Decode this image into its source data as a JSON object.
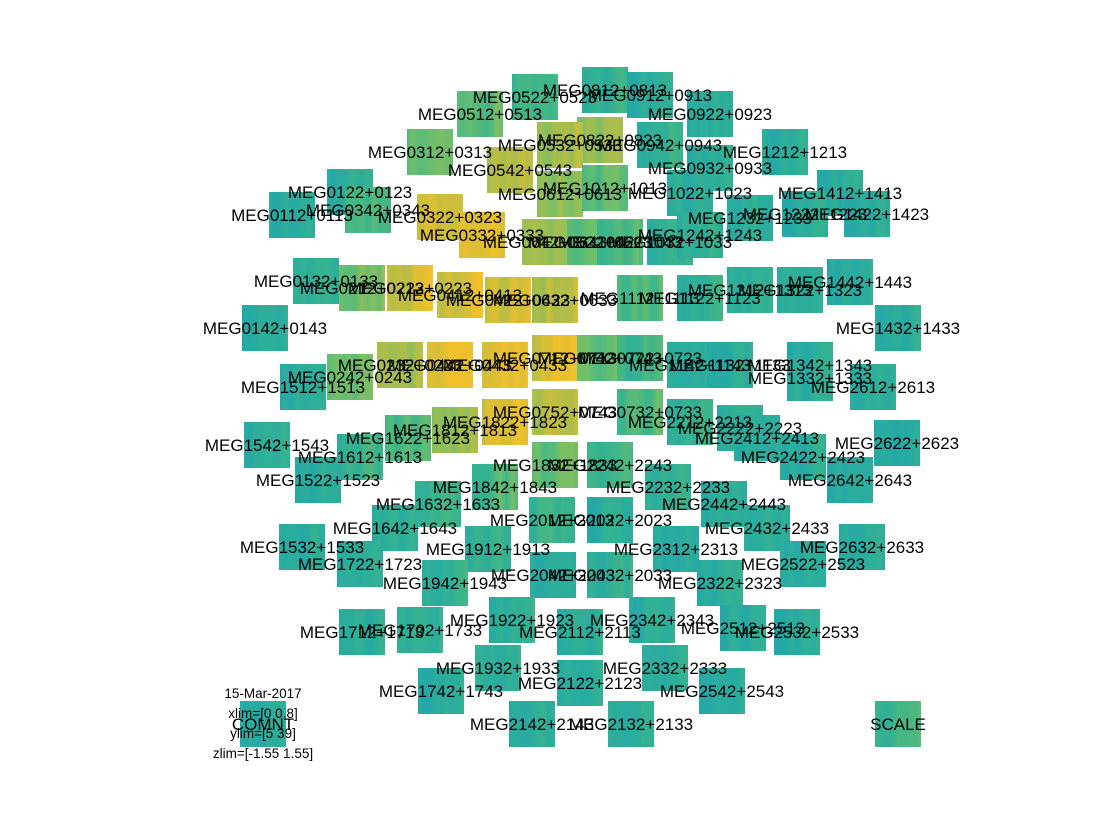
{
  "chart_data": {
    "type": "heatmap",
    "layout": "MEG planar-gradiometer sensor topography, one time-frequency tile per channel pair",
    "colormap": [
      "#24a8a8",
      "#35b38f",
      "#6fbf6a",
      "#b7bd45",
      "#f2c02a"
    ],
    "xlim": [
      0,
      0.8
    ],
    "ylim": [
      5,
      39
    ],
    "zlim": [
      -1.55,
      1.55
    ],
    "info": {
      "date": "15-Mar-2017",
      "xlim": "xlim=[0 0.8]",
      "ylim": "ylim=[5 39]",
      "zlim": "zlim=[-1.55 1.55]"
    },
    "channels": [
      {
        "label": "MEG0812+0813",
        "pos": [
          605,
          90
        ],
        "power": 0.12
      },
      {
        "label": "MEG0822+0823",
        "pos": [
          600,
          140
        ],
        "power": 0.55
      },
      {
        "label": "MEG0912+0913",
        "pos": [
          650,
          95
        ],
        "power": 0.08
      },
      {
        "label": "MEG0922+0923",
        "pos": [
          710,
          114
        ],
        "power": 0.05
      },
      {
        "label": "MEG0522+0523",
        "pos": [
          535,
          97
        ],
        "power": 0.25
      },
      {
        "label": "MEG0512+0513",
        "pos": [
          480,
          114
        ],
        "power": 0.35
      },
      {
        "label": "MEG0532+0533",
        "pos": [
          560,
          145
        ],
        "power": 0.65
      },
      {
        "label": "MEG0942+0943",
        "pos": [
          660,
          145
        ],
        "power": 0.15
      },
      {
        "label": "MEG0312+0313",
        "pos": [
          430,
          152
        ],
        "power": 0.4
      },
      {
        "label": "MEG0542+0543",
        "pos": [
          510,
          170
        ],
        "power": 0.7
      },
      {
        "label": "MEG0932+0933",
        "pos": [
          710,
          168
        ],
        "power": 0.05
      },
      {
        "label": "MEG1212+1213",
        "pos": [
          785,
          152
        ],
        "power": 0.08
      },
      {
        "label": "MEG0122+0123",
        "pos": [
          350,
          192
        ],
        "power": 0.1
      },
      {
        "label": "MEG0612+0613",
        "pos": [
          560,
          194
        ],
        "power": 0.55
      },
      {
        "label": "MEG1012+1013",
        "pos": [
          605,
          188
        ],
        "power": 0.35
      },
      {
        "label": "MEG1022+1023",
        "pos": [
          690,
          193
        ],
        "power": 0.1
      },
      {
        "label": "MEG1412+1413",
        "pos": [
          840,
          193
        ],
        "power": 0.05
      },
      {
        "label": "MEG0112+0113",
        "pos": [
          292,
          215
        ],
        "power": 0.05
      },
      {
        "label": "MEG0342+0343",
        "pos": [
          368,
          210
        ],
        "power": 0.25
      },
      {
        "label": "MEG0322+0323",
        "pos": [
          440,
          217
        ],
        "power": 0.8
      },
      {
        "label": "MEG1232+1233",
        "pos": [
          750,
          218
        ],
        "power": 0.08
      },
      {
        "label": "MEG1222+1223",
        "pos": [
          805,
          214
        ],
        "power": 0.05
      },
      {
        "label": "MEG1422+1423",
        "pos": [
          867,
          214
        ],
        "power": 0.05
      },
      {
        "label": "MEG0332+0333",
        "pos": [
          482,
          235
        ],
        "power": 0.85
      },
      {
        "label": "MEG0642+0643",
        "pos": [
          545,
          242
        ],
        "power": 0.6
      },
      {
        "label": "MEG0622+0623",
        "pos": [
          590,
          242
        ],
        "power": 0.4
      },
      {
        "label": "MEG1042+1043",
        "pos": [
          620,
          242
        ],
        "power": 0.3
      },
      {
        "label": "MEG1032+1033",
        "pos": [
          670,
          242
        ],
        "power": 0.15
      },
      {
        "label": "MEG1242+1243",
        "pos": [
          700,
          235
        ],
        "power": 0.1
      },
      {
        "label": "MEG0132+0133",
        "pos": [
          316,
          281
        ],
        "power": 0.1
      },
      {
        "label": "MEG0212+0213",
        "pos": [
          362,
          288
        ],
        "power": 0.45
      },
      {
        "label": "MEG0222+0223",
        "pos": [
          410,
          288
        ],
        "power": 0.8
      },
      {
        "label": "MEG0412+0413",
        "pos": [
          460,
          295
        ],
        "power": 0.85
      },
      {
        "label": "MEG0422+0423",
        "pos": [
          508,
          300
        ],
        "power": 0.8
      },
      {
        "label": "MEG0632+0633",
        "pos": [
          555,
          300
        ],
        "power": 0.7
      },
      {
        "label": "MEG1112+1113",
        "pos": [
          640,
          298
        ],
        "power": 0.3
      },
      {
        "label": "MEG1122+1123",
        "pos": [
          700,
          298
        ],
        "power": 0.1
      },
      {
        "label": "MEG1312+1313",
        "pos": [
          750,
          290
        ],
        "power": 0.05
      },
      {
        "label": "MEG1322+1323",
        "pos": [
          800,
          290
        ],
        "power": 0.05
      },
      {
        "label": "MEG1442+1443",
        "pos": [
          850,
          282
        ],
        "power": 0.05
      },
      {
        "label": "MEG0142+0143",
        "pos": [
          265,
          328
        ],
        "power": 0.05
      },
      {
        "label": "MEG1432+1433",
        "pos": [
          898,
          328
        ],
        "power": 0.05
      },
      {
        "label": "MEG0232+0233",
        "pos": [
          400,
          365
        ],
        "power": 0.6
      },
      {
        "label": "MEG0242+0243",
        "pos": [
          350,
          377
        ],
        "power": 0.4
      },
      {
        "label": "MEG0442+0443",
        "pos": [
          450,
          365
        ],
        "power": 0.9
      },
      {
        "label": "MEG0432+0433",
        "pos": [
          505,
          365
        ],
        "power": 0.9
      },
      {
        "label": "MEG0712+0713",
        "pos": [
          555,
          358
        ],
        "power": 0.85
      },
      {
        "label": "MEG0742+0743",
        "pos": [
          600,
          358
        ],
        "power": 0.4
      },
      {
        "label": "MEG0722+0723",
        "pos": [
          640,
          358
        ],
        "power": 0.25
      },
      {
        "label": "MEG1142+1143",
        "pos": [
          690,
          365
        ],
        "power": 0.1
      },
      {
        "label": "MEG1132+1133",
        "pos": [
          730,
          365
        ],
        "power": 0.05
      },
      {
        "label": "MEG1342+1343",
        "pos": [
          810,
          365
        ],
        "power": 0.05
      },
      {
        "label": "MEG1332+1333",
        "pos": [
          810,
          378
        ],
        "power": 0.05
      },
      {
        "label": "MEG1512+1513",
        "pos": [
          303,
          387
        ],
        "power": 0.05
      },
      {
        "label": "MEG2612+2613",
        "pos": [
          873,
          387
        ],
        "power": 0.05
      },
      {
        "label": "MEG0752+0743",
        "pos": [
          555,
          412
        ],
        "power": 0.7
      },
      {
        "label": "MEG0732+0733",
        "pos": [
          640,
          412
        ],
        "power": 0.3
      },
      {
        "label": "MEG1822+1823",
        "pos": [
          505,
          422
        ],
        "power": 0.8
      },
      {
        "label": "MEG2212+2213",
        "pos": [
          690,
          422
        ],
        "power": 0.15
      },
      {
        "label": "MEG2222+2223",
        "pos": [
          740,
          428
        ],
        "power": 0.1
      },
      {
        "label": "MEG2412+2413",
        "pos": [
          757,
          438
        ],
        "power": 0.05
      },
      {
        "label": "MEG1542+1543",
        "pos": [
          267,
          445
        ],
        "power": 0.05
      },
      {
        "label": "MEG1622+1623",
        "pos": [
          408,
          438
        ],
        "power": 0.3
      },
      {
        "label": "MEG1812+1813",
        "pos": [
          455,
          430
        ],
        "power": 0.6
      },
      {
        "label": "MEG2622+2623",
        "pos": [
          897,
          443
        ],
        "power": 0.05
      },
      {
        "label": "MEG1612+1613",
        "pos": [
          360,
          457
        ],
        "power": 0.2
      },
      {
        "label": "MEG2422+2423",
        "pos": [
          803,
          457
        ],
        "power": 0.05
      },
      {
        "label": "MEG1832+1833",
        "pos": [
          555,
          465
        ],
        "power": 0.4
      },
      {
        "label": "MEG2242+2243",
        "pos": [
          610,
          465
        ],
        "power": 0.25
      },
      {
        "label": "MEG1522+1523",
        "pos": [
          318,
          480
        ],
        "power": 0.05
      },
      {
        "label": "MEG2642+2643",
        "pos": [
          850,
          480
        ],
        "power": 0.05
      },
      {
        "label": "MEG1842+1843",
        "pos": [
          495,
          487
        ],
        "power": 0.3
      },
      {
        "label": "MEG2232+2233",
        "pos": [
          668,
          487
        ],
        "power": 0.1
      },
      {
        "label": "MEG1632+1633",
        "pos": [
          438,
          504
        ],
        "power": 0.15
      },
      {
        "label": "MEG2442+2443",
        "pos": [
          724,
          504
        ],
        "power": 0.05
      },
      {
        "label": "MEG2012+2013",
        "pos": [
          552,
          520
        ],
        "power": 0.2
      },
      {
        "label": "MEG2022+2023",
        "pos": [
          610,
          520
        ],
        "power": 0.1
      },
      {
        "label": "MEG1642+1643",
        "pos": [
          395,
          528
        ],
        "power": 0.1
      },
      {
        "label": "MEG2432+2433",
        "pos": [
          767,
          528
        ],
        "power": 0.05
      },
      {
        "label": "MEG1532+1533",
        "pos": [
          302,
          547
        ],
        "power": 0.05
      },
      {
        "label": "MEG1912+1913",
        "pos": [
          488,
          549
        ],
        "power": 0.15
      },
      {
        "label": "MEG2312+2313",
        "pos": [
          676,
          549
        ],
        "power": 0.05
      },
      {
        "label": "MEG2632+2633",
        "pos": [
          862,
          547
        ],
        "power": 0.05
      },
      {
        "label": "MEG1722+1723",
        "pos": [
          360,
          564
        ],
        "power": 0.1
      },
      {
        "label": "MEG2522+2523",
        "pos": [
          803,
          564
        ],
        "power": 0.05
      },
      {
        "label": "MEG2042+2043",
        "pos": [
          553,
          575
        ],
        "power": 0.1
      },
      {
        "label": "MEG2032+2033",
        "pos": [
          610,
          575
        ],
        "power": 0.1
      },
      {
        "label": "MEG1942+1943",
        "pos": [
          445,
          583
        ],
        "power": 0.1
      },
      {
        "label": "MEG2322+2323",
        "pos": [
          720,
          583
        ],
        "power": 0.05
      },
      {
        "label": "MEG1922+1923",
        "pos": [
          512,
          620
        ],
        "power": 0.1
      },
      {
        "label": "MEG2342+2343",
        "pos": [
          652,
          620
        ],
        "power": 0.05
      },
      {
        "label": "MEG1702+1733",
        "pos": [
          420,
          630
        ],
        "power": 0.1
      },
      {
        "label": "MEG1712+1713",
        "pos": [
          362,
          632
        ],
        "power": 0.05
      },
      {
        "label": "MEG2112+2113",
        "pos": [
          580,
          632
        ],
        "power": 0.05
      },
      {
        "label": "MEG2512+2513",
        "pos": [
          743,
          628
        ],
        "power": 0.05
      },
      {
        "label": "MEG2532+2533",
        "pos": [
          797,
          632
        ],
        "power": 0.05
      },
      {
        "label": "MEG1932+1933",
        "pos": [
          498,
          668
        ],
        "power": 0.1
      },
      {
        "label": "MEG2332+2333",
        "pos": [
          665,
          668
        ],
        "power": 0.05
      },
      {
        "label": "MEG2122+2123",
        "pos": [
          580,
          683
        ],
        "power": 0.05
      },
      {
        "label": "MEG1742+1743",
        "pos": [
          441,
          691
        ],
        "power": 0.05
      },
      {
        "label": "MEG2542+2543",
        "pos": [
          722,
          691
        ],
        "power": 0.05
      },
      {
        "label": "MEG2142+2143",
        "pos": [
          532,
          724
        ],
        "power": 0.05
      },
      {
        "label": "MEG2132+2133",
        "pos": [
          631,
          724
        ],
        "power": 0.05
      },
      {
        "label": "COMNT",
        "pos": [
          263,
          724
        ],
        "power": 0.0
      },
      {
        "label": "SCALE",
        "pos": [
          898,
          724
        ],
        "power": 0.25
      }
    ]
  }
}
